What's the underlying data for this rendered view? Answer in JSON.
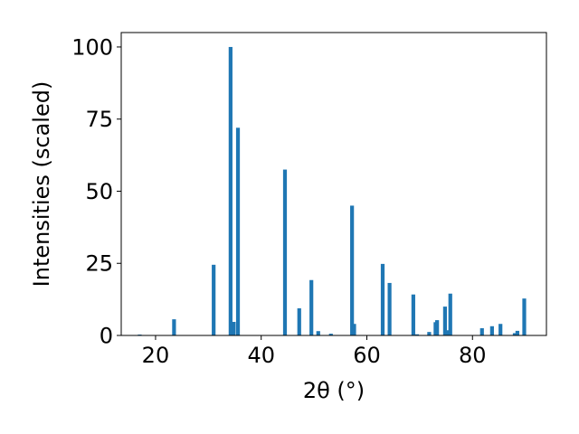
{
  "chart_data": {
    "type": "bar",
    "xlabel": "2θ (°)",
    "ylabel": "Intensities (scaled)",
    "xlim": [
      13.5,
      94
    ],
    "ylim": [
      0,
      105
    ],
    "x_ticks": [
      20,
      40,
      60,
      80
    ],
    "y_ticks": [
      0,
      25,
      50,
      75,
      100
    ],
    "bar_color": "#1f77b4",
    "x": [
      17.0,
      23.5,
      31.0,
      34.2,
      34.8,
      35.6,
      44.5,
      47.2,
      49.5,
      50.8,
      53.2,
      57.2,
      57.6,
      63.0,
      64.3,
      68.8,
      69.5,
      71.8,
      73.0,
      73.3,
      74.8,
      75.3,
      75.8,
      81.8,
      83.7,
      85.3,
      88.0,
      88.5,
      89.8
    ],
    "values": [
      0.3,
      5.6,
      24.5,
      100.0,
      4.7,
      72.0,
      57.5,
      9.4,
      19.2,
      1.5,
      0.6,
      45.0,
      4.0,
      24.8,
      18.2,
      14.2,
      0.4,
      1.2,
      4.6,
      5.3,
      10.0,
      1.8,
      14.5,
      2.5,
      3.2,
      4.0,
      0.8,
      1.6,
      12.8
    ]
  }
}
